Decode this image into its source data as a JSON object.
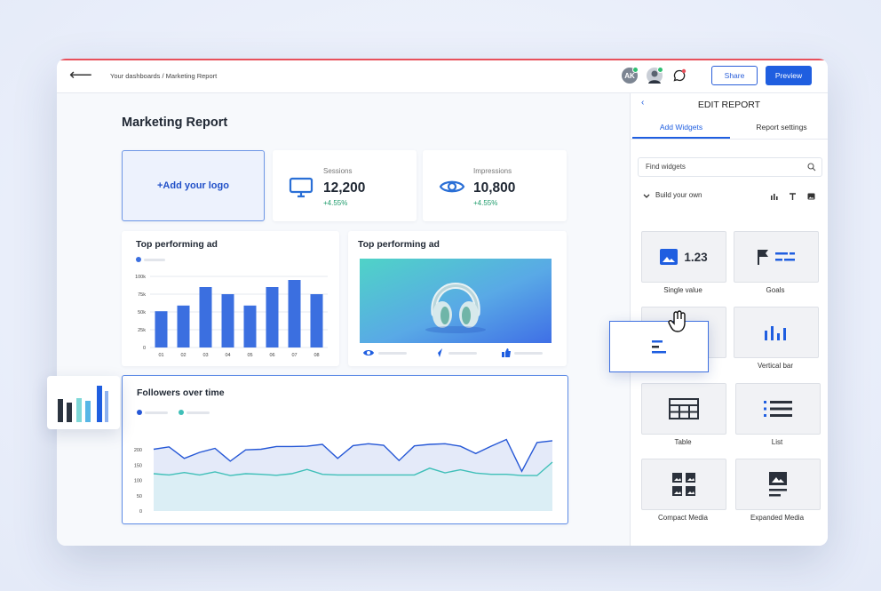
{
  "topbar": {
    "breadcrumb": "Your dashboards / Marketing Report",
    "avatar_initials": "AK",
    "share_label": "Share",
    "preview_label": "Preview",
    "back_icon": "arrow-left-icon",
    "chat_icon": "chat-bubble-icon"
  },
  "main": {
    "title": "Marketing Report",
    "logo_placeholder": "+Add your logo",
    "kpis": [
      {
        "label": "Sessions",
        "value": "12,200",
        "delta": "+4.55%",
        "icon": "monitor-icon"
      },
      {
        "label": "Impressions",
        "value": "10,800",
        "delta": "+4.55%",
        "icon": "eye-icon"
      }
    ],
    "bar_card_title": "Top performing ad",
    "image_card_title": "Top performing ad",
    "line_card_title": "Followers over time"
  },
  "colors": {
    "accent": "#1f5ee0",
    "bar": "#3b6fe0",
    "line1": "#2557d6",
    "line2": "#3fbfb8",
    "positive": "#1e9b6b",
    "top_border": "#e8505b"
  },
  "chart_data": [
    {
      "type": "bar",
      "categories": [
        "01",
        "02",
        "03",
        "04",
        "05",
        "06",
        "07",
        "08"
      ],
      "values": [
        51,
        59,
        85,
        75,
        59,
        85,
        95,
        75
      ],
      "yticks": [
        "0",
        "25k",
        "50k",
        "75k",
        "100k"
      ],
      "ylim": [
        0,
        100
      ]
    },
    {
      "type": "area",
      "yticks": [
        "0",
        "50",
        "100",
        "150",
        "200"
      ],
      "ylim": [
        0,
        250
      ],
      "series": [
        {
          "values": [
            202,
            210,
            172,
            192,
            205,
            163,
            200,
            202,
            211,
            211,
            212,
            218,
            172,
            214,
            220,
            215,
            165,
            213,
            218,
            220,
            212,
            188,
            212,
            234,
            130,
            224,
            230
          ]
        },
        {
          "values": [
            122,
            118,
            126,
            118,
            128,
            116,
            122,
            120,
            117,
            122,
            136,
            120,
            118,
            118,
            118,
            118,
            118,
            118,
            140,
            125,
            135,
            124,
            120,
            120,
            116,
            116,
            160
          ]
        }
      ]
    }
  ],
  "panel": {
    "title": "EDIT REPORT",
    "tab_add": "Add Widgets",
    "tab_settings": "Report settings",
    "search_placeholder": "Find widgets",
    "build_label": "Build your own",
    "single_value_text": "1.23",
    "widgets": [
      {
        "label": "Single value",
        "icon": "image-value-icon"
      },
      {
        "label": "Goals",
        "icon": "flag-goals-icon"
      },
      {
        "label": "",
        "icon": "hand-cursor-icon"
      },
      {
        "label": "Vertical bar",
        "icon": "vertical-bar-icon"
      },
      {
        "label": "Table",
        "icon": "table-icon"
      },
      {
        "label": "List",
        "icon": "list-icon"
      },
      {
        "label": "Compact Media",
        "icon": "compact-media-icon"
      },
      {
        "label": "Expanded Media",
        "icon": "expanded-media-icon"
      }
    ]
  }
}
